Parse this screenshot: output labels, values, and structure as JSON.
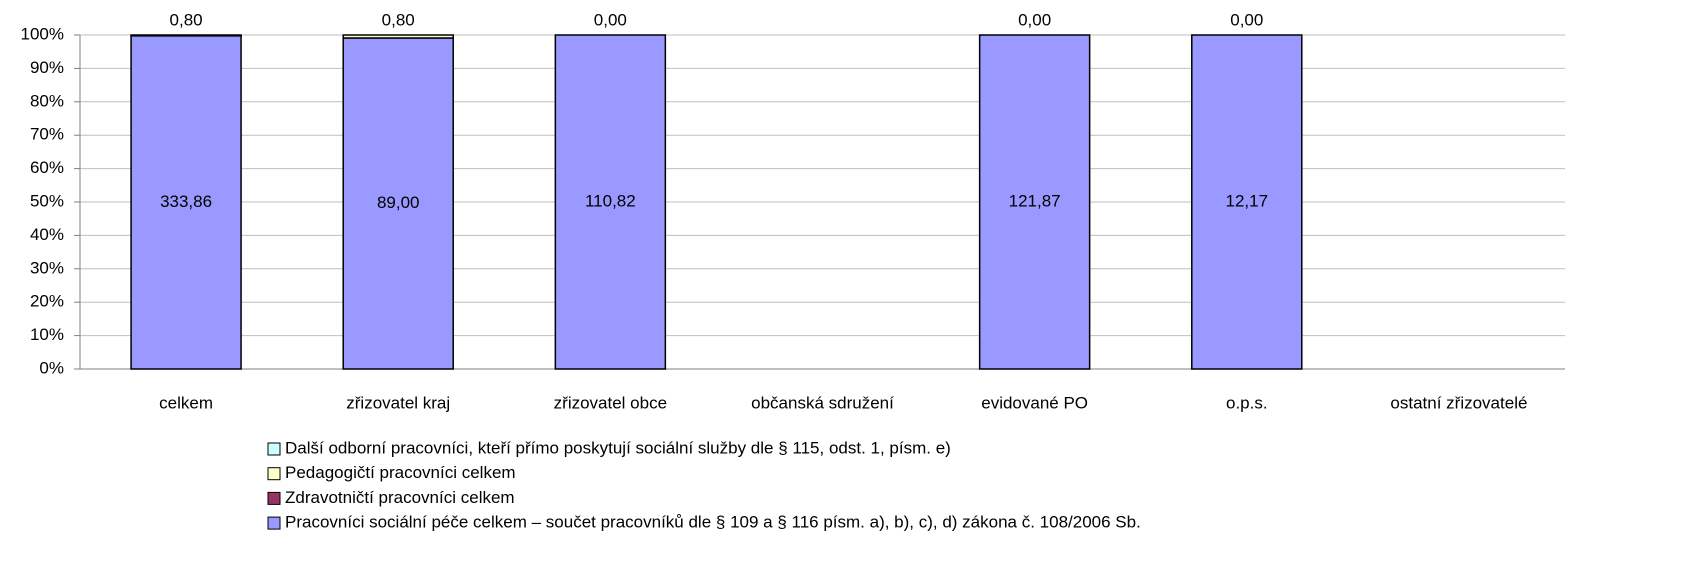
{
  "chart_data": {
    "type": "bar",
    "stacking": "percent",
    "categories": [
      "celkem",
      "zřizovatel kraj",
      "zřizovatel obce",
      "občanská sdružení",
      "evidované PO",
      "o.p.s.",
      "ostatní zřizovatelé"
    ],
    "series": [
      {
        "name": "Pracovníci sociální péče celkem – součet pracovníků dle § 109 a § 116 písm. a), b), c), d) zákona č. 108/2006 Sb.",
        "color": "#9999ff",
        "values": [
          333.86,
          89.0,
          110.82,
          null,
          121.87,
          12.17,
          null
        ],
        "value_labels": [
          "333,86",
          "89,00",
          "110,82",
          null,
          "121,87",
          "12,17",
          null
        ]
      },
      {
        "name": "Zdravotničtí pracovníci celkem",
        "color": "#993366",
        "values": [
          0,
          0,
          0,
          null,
          0,
          0,
          null
        ]
      },
      {
        "name": "Pedagogičtí pracovníci celkem",
        "color": "#ffffcc",
        "values": [
          0.8,
          0.8,
          0.0,
          null,
          0.0,
          0.0,
          null
        ],
        "value_labels": [
          "0,80",
          "0,80",
          "0,00",
          null,
          "0,00",
          "0,00",
          null
        ]
      },
      {
        "name": "Další odborní pracovníci, kteří přímo poskytují sociální služby dle § 115, odst. 1, písm. e)",
        "color": "#ccffff",
        "values": [
          0,
          0,
          0,
          null,
          0,
          0,
          null
        ]
      }
    ],
    "ylim": [
      0,
      100
    ],
    "yticks": [
      {
        "value": 0,
        "label": "0%"
      },
      {
        "value": 10,
        "label": "10%"
      },
      {
        "value": 20,
        "label": "20%"
      },
      {
        "value": 30,
        "label": "30%"
      },
      {
        "value": 40,
        "label": "40%"
      },
      {
        "value": 50,
        "label": "50%"
      },
      {
        "value": 60,
        "label": "60%"
      },
      {
        "value": 70,
        "label": "70%"
      },
      {
        "value": 80,
        "label": "80%"
      },
      {
        "value": 90,
        "label": "90%"
      },
      {
        "value": 100,
        "label": "100%"
      }
    ],
    "grid": true,
    "legend": "bottom"
  }
}
